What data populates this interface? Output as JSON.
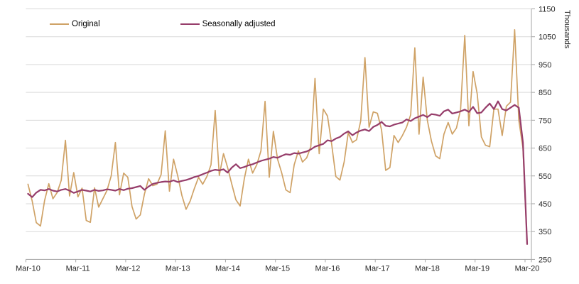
{
  "chart_data": {
    "type": "line",
    "title": "",
    "ylabel": "Thousands",
    "x_start": "Mar-2010",
    "x_freq": "monthly",
    "x_axis_labels": [
      "Mar-10",
      "Mar-11",
      "Mar-12",
      "Mar-13",
      "Mar-14",
      "Mar-15",
      "Mar-16",
      "Mar-17",
      "Mar-18",
      "Mar-19",
      "Mar-20"
    ],
    "y_ticks": [
      250,
      350,
      450,
      550,
      650,
      750,
      850,
      950,
      1050,
      1150
    ],
    "ylim": [
      250,
      1150
    ],
    "grid": "horizontal",
    "legend_position": "top-left-inside",
    "axis_color": "#a6a6a6",
    "gridline_color": "#d9d9d9",
    "series": [
      {
        "name": "Original",
        "color": "#cfa266",
        "width": 1.7,
        "values": [
          520,
          460,
          382,
          370,
          462,
          522,
          468,
          490,
          534,
          678,
          478,
          562,
          475,
          506,
          390,
          383,
          507,
          438,
          468,
          498,
          550,
          670,
          482,
          560,
          545,
          440,
          395,
          410,
          485,
          540,
          515,
          520,
          555,
          712,
          495,
          610,
          550,
          480,
          430,
          460,
          505,
          545,
          520,
          548,
          590,
          785,
          552,
          630,
          580,
          520,
          464,
          442,
          540,
          610,
          560,
          590,
          640,
          818,
          545,
          710,
          610,
          560,
          500,
          490,
          590,
          640,
          600,
          615,
          655,
          900,
          630,
          790,
          765,
          665,
          548,
          535,
          600,
          705,
          670,
          680,
          748,
          975,
          725,
          780,
          775,
          715,
          570,
          580,
          695,
          670,
          695,
          725,
          770,
          1010,
          700,
          905,
          750,
          675,
          622,
          612,
          700,
          742,
          700,
          722,
          788,
          1055,
          730,
          925,
          845,
          690,
          660,
          655,
          790,
          790,
          695,
          800,
          815,
          1075,
          750,
          650,
          305
        ]
      },
      {
        "name": "Seasonally adjusted",
        "color": "#963d6a",
        "width": 2.2,
        "values": [
          486,
          474,
          490,
          500,
          498,
          503,
          497,
          494,
          500,
          503,
          497,
          489,
          494,
          500,
          497,
          494,
          500,
          496,
          498,
          502,
          500,
          497,
          503,
          499,
          504,
          506,
          510,
          514,
          500,
          512,
          521,
          525,
          528,
          530,
          529,
          534,
          528,
          532,
          535,
          540,
          546,
          550,
          556,
          562,
          568,
          572,
          570,
          574,
          562,
          580,
          592,
          578,
          582,
          588,
          592,
          598,
          604,
          608,
          612,
          618,
          615,
          622,
          628,
          626,
          632,
          630,
          634,
          638,
          645,
          655,
          660,
          665,
          678,
          675,
          684,
          690,
          702,
          710,
          696,
          706,
          713,
          717,
          711,
          726,
          733,
          744,
          730,
          728,
          734,
          738,
          742,
          753,
          747,
          757,
          763,
          769,
          761,
          772,
          770,
          766,
          782,
          788,
          774,
          778,
          782,
          788,
          780,
          798,
          775,
          778,
          795,
          810,
          790,
          818,
          790,
          785,
          795,
          805,
          795,
          670,
          305
        ]
      }
    ]
  },
  "legend": {
    "items": [
      {
        "label": "Original"
      },
      {
        "label": "Seasonally adjusted"
      }
    ]
  }
}
